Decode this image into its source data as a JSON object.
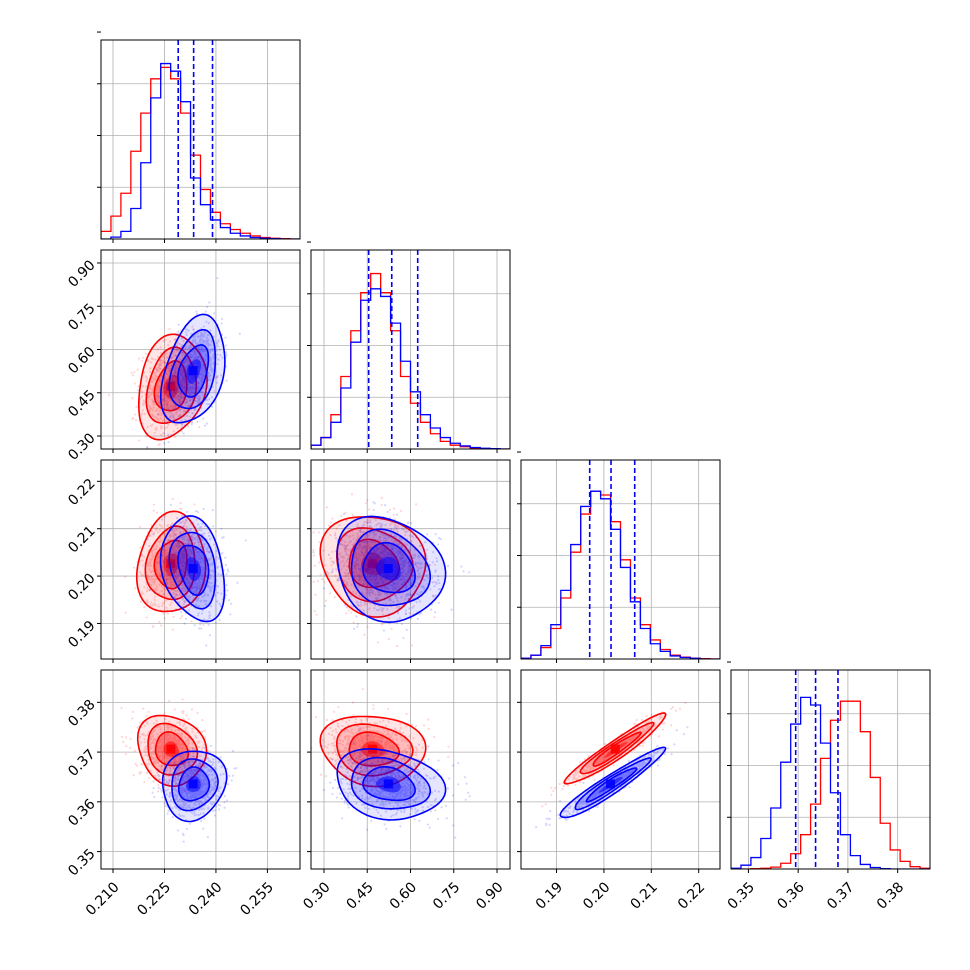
{
  "colors": {
    "red_sample": "#ff0000",
    "blue_sample": "#0000ff",
    "grid": "#b0b0b0",
    "frame": "#000000"
  },
  "chart_data": {
    "type": "corner",
    "title": "",
    "grid": true,
    "parameters": [
      {
        "ticks": [
          "0.210",
          "0.225",
          "0.240",
          "0.255"
        ],
        "tick_values": [
          0.21,
          0.225,
          0.24,
          0.255
        ],
        "range": [
          0.2065,
          0.2645
        ]
      },
      {
        "ticks": [
          "0.30",
          "0.45",
          "0.60",
          "0.75",
          "0.90"
        ],
        "tick_values": [
          0.3,
          0.45,
          0.6,
          0.75,
          0.9
        ],
        "range": [
          0.255,
          0.945
        ]
      },
      {
        "ticks": [
          "0.19",
          "0.20",
          "0.21",
          "0.22"
        ],
        "tick_values": [
          0.19,
          0.2,
          0.21,
          0.22
        ],
        "range": [
          0.1825,
          0.2245
        ]
      },
      {
        "ticks": [
          "0.35",
          "0.36",
          "0.37",
          "0.38"
        ],
        "tick_values": [
          0.35,
          0.36,
          0.37,
          0.38
        ],
        "range": [
          0.3465,
          0.3865
        ]
      }
    ],
    "series": [
      {
        "color": "#ff0000",
        "means": [
          0.227,
          0.47,
          0.2025,
          0.3705
        ],
        "sigmas": [
          0.0045,
          0.082,
          0.0048,
          0.0032
        ],
        "correlations": [
          [
            0,
            1,
            0.2
          ],
          [
            0,
            2,
            0.1
          ],
          [
            0,
            3,
            -0.15
          ],
          [
            1,
            2,
            -0.1
          ],
          [
            1,
            3,
            -0.1
          ],
          [
            2,
            3,
            0.95
          ]
        ],
        "hist": [
          {
            "edges": [
              0.2065,
              0.2645
            ],
            "counts": [
              0.2,
              0.6,
              1.2,
              2.3,
              3.3,
              4.2,
              4.5,
              4.2,
              3.3,
              2.2,
              1.3,
              0.7,
              0.4,
              0.25,
              0.15,
              0.08,
              0.04,
              0.02,
              0.01,
              0.0
            ]
          },
          {
            "edges": [
              0.255,
              0.945
            ],
            "counts": [
              0.1,
              0.3,
              0.9,
              1.9,
              3.1,
              4.1,
              4.6,
              4.1,
              3.1,
              1.9,
              1.2,
              0.7,
              0.4,
              0.2,
              0.1,
              0.06,
              0.03,
              0.01,
              0.0,
              0.0
            ]
          },
          {
            "edges": [
              0.1825,
              0.2245
            ],
            "counts": [
              0.02,
              0.1,
              0.3,
              0.8,
              1.6,
              2.8,
              3.8,
              4.4,
              4.3,
              3.6,
              2.6,
              1.6,
              0.9,
              0.5,
              0.25,
              0.1,
              0.05,
              0.02,
              0.01,
              0.0
            ]
          },
          {
            "edges": [
              0.3465,
              0.3865
            ],
            "counts": [
              0.0,
              0.0,
              0.01,
              0.02,
              0.05,
              0.15,
              0.4,
              0.9,
              1.7,
              2.9,
              3.9,
              4.4,
              4.4,
              3.6,
              2.4,
              1.2,
              0.5,
              0.2,
              0.06,
              0.02
            ]
          }
        ]
      },
      {
        "color": "#0000ff",
        "means": [
          0.2335,
          0.525,
          0.2015,
          0.3635
        ],
        "sigmas": [
          0.0042,
          0.085,
          0.005,
          0.0032
        ],
        "correlations": [
          [
            0,
            1,
            0.35
          ],
          [
            0,
            2,
            -0.25
          ],
          [
            0,
            3,
            0.1
          ],
          [
            1,
            2,
            -0.15
          ],
          [
            1,
            3,
            -0.2
          ],
          [
            2,
            3,
            0.95
          ]
        ],
        "quantiles": [
          [
            0.229,
            0.2335,
            0.239
          ],
          [
            0.455,
            0.535,
            0.625
          ],
          [
            0.197,
            0.2015,
            0.2065
          ],
          [
            0.3595,
            0.3635,
            0.368
          ]
        ],
        "hist": [
          {
            "edges": [
              0.2065,
              0.2645
            ],
            "counts": [
              0.0,
              0.05,
              0.2,
              0.8,
              2.0,
              3.7,
              4.6,
              4.4,
              3.6,
              1.6,
              0.9,
              0.5,
              0.3,
              0.15,
              0.08,
              0.04,
              0.02,
              0.01,
              0.0,
              0.0
            ]
          },
          {
            "edges": [
              0.255,
              0.945
            ],
            "counts": [
              0.1,
              0.3,
              0.7,
              1.6,
              2.8,
              3.9,
              4.2,
              4.0,
              3.3,
              2.3,
              1.5,
              0.9,
              0.55,
              0.3,
              0.15,
              0.08,
              0.04,
              0.02,
              0.01,
              0.0
            ]
          },
          {
            "edges": [
              0.1825,
              0.2245
            ],
            "counts": [
              0.02,
              0.1,
              0.35,
              0.9,
              1.8,
              3.0,
              4.0,
              4.4,
              4.2,
              3.4,
              2.4,
              1.5,
              0.8,
              0.4,
              0.2,
              0.08,
              0.04,
              0.02,
              0.0,
              0.0
            ]
          },
          {
            "edges": [
              0.3465,
              0.3865
            ],
            "counts": [
              0.02,
              0.1,
              0.3,
              0.8,
              1.6,
              2.8,
              3.8,
              4.5,
              4.3,
              3.3,
              2.0,
              0.9,
              0.35,
              0.12,
              0.04,
              0.01,
              0.0,
              0.0,
              0.0,
              0.0
            ]
          }
        ]
      }
    ]
  }
}
